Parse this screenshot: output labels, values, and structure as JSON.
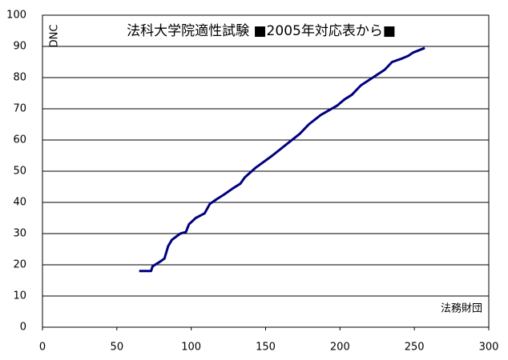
{
  "chart_data": {
    "type": "line",
    "title": "法科大学院適性試験 ■2005年対応表から■",
    "y_label": "DNC",
    "x_label": "法務財団",
    "xlim": [
      0,
      300
    ],
    "xticks": [
      0,
      50,
      100,
      150,
      200,
      250,
      300
    ],
    "ylim": [
      0,
      100
    ],
    "yticks": [
      0,
      10,
      20,
      30,
      40,
      50,
      60,
      70,
      80,
      90,
      100
    ],
    "grid": true,
    "series": [
      {
        "color": "#000080",
        "x": [
          65,
          73,
          74,
          79,
          82,
          84.5,
          87,
          92.6,
          96.4,
          98.5,
          103,
          109,
          112.5,
          117,
          122,
          128,
          133,
          136,
          143,
          154.5,
          165,
          173,
          179,
          187,
          198,
          203,
          208,
          214,
          222,
          230,
          235,
          241,
          246,
          249,
          257
        ],
        "values": [
          18,
          18,
          19.5,
          21,
          22,
          26,
          28,
          30,
          30.5,
          33,
          35,
          36.5,
          39.5,
          41,
          42.5,
          44.5,
          46,
          48,
          51,
          55,
          59,
          62,
          65,
          68,
          71,
          73,
          74.5,
          77.5,
          80,
          82.5,
          85,
          86,
          87,
          88,
          89.5
        ]
      }
    ]
  }
}
